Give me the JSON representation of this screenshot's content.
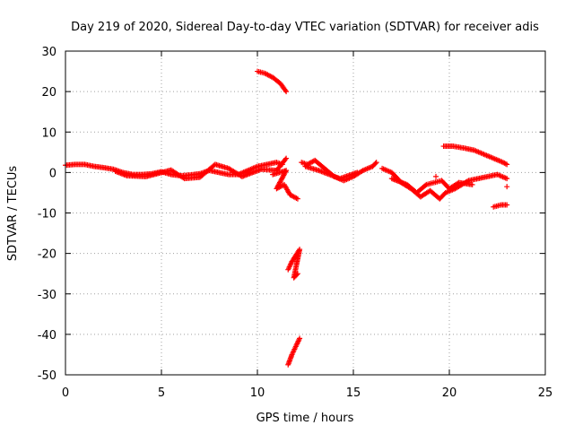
{
  "chart_data": {
    "type": "scatter",
    "title": "Day 219 of 2020, Sidereal Day-to-day VTEC variation (SDTVAR) for receiver adis",
    "xlabel": "GPS time / hours",
    "ylabel": "SDTVAR / TECUs",
    "xlim": [
      0,
      25
    ],
    "ylim": [
      -50,
      30
    ],
    "xticks": [
      0,
      5,
      10,
      15,
      20,
      25
    ],
    "xtick_labels": [
      "0",
      "5",
      "10",
      "15",
      "20",
      "25"
    ],
    "yticks": [
      -50,
      -40,
      -30,
      -20,
      -10,
      0,
      10,
      20,
      30
    ],
    "ytick_labels": [
      "-50",
      "-40",
      "-30",
      "-20",
      "-10",
      "0",
      "10",
      "20",
      "30"
    ],
    "grid": true,
    "marker": "+",
    "color": "#ff0000",
    "series": [
      {
        "name": "main-trace-a",
        "points": [
          [
            0.0,
            1.8
          ],
          [
            0.5,
            2.0
          ],
          [
            1.0,
            2.0
          ],
          [
            1.5,
            1.5
          ],
          [
            2.0,
            1.2
          ],
          [
            2.5,
            0.8
          ],
          [
            3.0,
            0.0
          ],
          [
            3.5,
            -0.5
          ],
          [
            4.0,
            -0.5
          ],
          [
            4.5,
            -0.3
          ],
          [
            5.0,
            0.2
          ],
          [
            5.5,
            -0.5
          ],
          [
            6.0,
            -0.8
          ],
          [
            6.5,
            -0.6
          ],
          [
            7.0,
            -0.3
          ],
          [
            7.5,
            0.5
          ],
          [
            8.0,
            0.0
          ],
          [
            8.5,
            -0.5
          ],
          [
            9.0,
            -0.5
          ],
          [
            9.5,
            0.5
          ],
          [
            10.0,
            1.5
          ],
          [
            10.5,
            2.0
          ],
          [
            11.0,
            2.5
          ],
          [
            11.3,
            2.0
          ]
        ]
      },
      {
        "name": "main-trace-b",
        "points": [
          [
            2.6,
            0.3
          ],
          [
            3.2,
            -0.8
          ],
          [
            4.2,
            -1.0
          ],
          [
            5.5,
            0.6
          ],
          [
            6.2,
            -1.5
          ],
          [
            7.0,
            -1.2
          ],
          [
            7.8,
            2.0
          ],
          [
            8.5,
            1.0
          ],
          [
            9.2,
            -1.0
          ],
          [
            10.2,
            0.8
          ],
          [
            11.0,
            0.5
          ],
          [
            11.5,
            3.5
          ]
        ]
      },
      {
        "name": "high-segment-11h",
        "points": [
          [
            10.0,
            25.0
          ],
          [
            10.4,
            24.5
          ],
          [
            10.8,
            23.5
          ],
          [
            11.2,
            22.0
          ],
          [
            11.5,
            20.0
          ]
        ]
      },
      {
        "name": "minus-segment-11h",
        "points": [
          [
            10.8,
            -0.5
          ],
          [
            11.5,
            0.5
          ],
          [
            11.0,
            -4.0
          ],
          [
            11.4,
            -3.0
          ],
          [
            11.7,
            -5.5
          ],
          [
            12.1,
            -6.5
          ]
        ]
      },
      {
        "name": "drop-segment-12h",
        "points": [
          [
            11.6,
            -24.0
          ],
          [
            11.8,
            -22.0
          ],
          [
            12.0,
            -20.5
          ],
          [
            12.2,
            -19.0
          ],
          [
            11.9,
            -26.0
          ],
          [
            12.1,
            -25.0
          ]
        ]
      },
      {
        "name": "low-segment-12h",
        "points": [
          [
            11.6,
            -47.5
          ],
          [
            11.8,
            -45.0
          ],
          [
            12.0,
            -43.0
          ],
          [
            12.2,
            -41.0
          ]
        ]
      },
      {
        "name": "mid-trace",
        "points": [
          [
            12.3,
            2.5
          ],
          [
            12.6,
            2.0
          ],
          [
            13.0,
            3.0
          ],
          [
            13.5,
            1.0
          ],
          [
            14.0,
            -1.0
          ],
          [
            14.5,
            -2.0
          ],
          [
            15.0,
            -1.0
          ],
          [
            15.5,
            0.5
          ],
          [
            16.0,
            1.5
          ],
          [
            16.2,
            2.5
          ],
          [
            12.5,
            1.5
          ],
          [
            13.2,
            0.5
          ],
          [
            14.3,
            -1.5
          ],
          [
            15.2,
            0.0
          ]
        ]
      },
      {
        "name": "late-trace-a",
        "points": [
          [
            16.5,
            1.0
          ],
          [
            17.0,
            0.0
          ],
          [
            17.5,
            -2.5
          ],
          [
            18.0,
            -4.0
          ],
          [
            18.5,
            -6.0
          ],
          [
            19.0,
            -4.5
          ],
          [
            19.5,
            -6.5
          ],
          [
            19.8,
            -5.0
          ],
          [
            20.3,
            -4.0
          ],
          [
            21.0,
            -2.0
          ],
          [
            21.5,
            -1.5
          ],
          [
            22.0,
            -1.0
          ],
          [
            22.5,
            -0.5
          ],
          [
            23.0,
            -1.5
          ]
        ]
      },
      {
        "name": "late-trace-b",
        "points": [
          [
            17.0,
            -1.5
          ],
          [
            17.8,
            -3.0
          ],
          [
            18.3,
            -5.0
          ],
          [
            18.8,
            -3.0
          ],
          [
            19.2,
            -2.5
          ],
          [
            19.6,
            -2.0
          ],
          [
            20.0,
            -4.0
          ],
          [
            20.5,
            -2.5
          ],
          [
            21.2,
            -3.0
          ]
        ]
      },
      {
        "name": "late-high-segment",
        "points": [
          [
            19.7,
            6.5
          ],
          [
            20.2,
            6.5
          ],
          [
            20.8,
            6.0
          ],
          [
            21.3,
            5.5
          ],
          [
            21.8,
            4.5
          ],
          [
            22.3,
            3.5
          ],
          [
            22.8,
            2.5
          ],
          [
            23.0,
            2.0
          ]
        ]
      },
      {
        "name": "late-low-segment",
        "points": [
          [
            22.3,
            -8.5
          ],
          [
            22.7,
            -8.0
          ],
          [
            23.0,
            -8.0
          ]
        ]
      },
      {
        "name": "end-markers",
        "points": [
          [
            23.0,
            -3.5
          ],
          [
            19.3,
            -1.0
          ]
        ]
      }
    ]
  }
}
